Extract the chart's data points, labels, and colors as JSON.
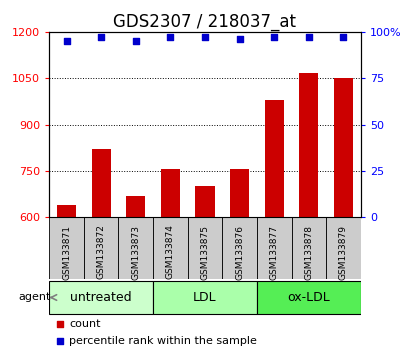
{
  "title": "GDS2307 / 218037_at",
  "categories": [
    "GSM133871",
    "GSM133872",
    "GSM133873",
    "GSM133874",
    "GSM133875",
    "GSM133876",
    "GSM133877",
    "GSM133878",
    "GSM133879"
  ],
  "bar_values": [
    638,
    820,
    668,
    757,
    700,
    757,
    978,
    1068,
    1052
  ],
  "percentile_values": [
    95,
    97,
    95,
    97,
    97,
    96,
    97,
    97,
    97
  ],
  "bar_color": "#cc0000",
  "percentile_color": "#0000cc",
  "ylim_left": [
    600,
    1200
  ],
  "ylim_right": [
    0,
    100
  ],
  "yticks_left": [
    600,
    750,
    900,
    1050,
    1200
  ],
  "yticks_right": [
    0,
    25,
    50,
    75,
    100
  ],
  "ytick_labels_left": [
    "600",
    "750",
    "900",
    "1050",
    "1200"
  ],
  "ytick_labels_right": [
    "0",
    "25",
    "50",
    "75",
    "100%"
  ],
  "groups": [
    {
      "label": "untreated",
      "start": 0,
      "end": 3,
      "color": "#ccffcc"
    },
    {
      "label": "LDL",
      "start": 3,
      "end": 6,
      "color": "#aaffaa"
    },
    {
      "label": "ox-LDL",
      "start": 6,
      "end": 9,
      "color": "#55ee55"
    }
  ],
  "agent_label": "agent",
  "legend_count_label": "count",
  "legend_percentile_label": "percentile rank within the sample",
  "background_color": "#ffffff",
  "plot_bg_color": "#ffffff",
  "sample_bg_color": "#cccccc",
  "grid_color": "#000000",
  "bar_width": 0.55,
  "title_fontsize": 12,
  "tick_fontsize": 8,
  "sample_fontsize": 6.5,
  "label_fontsize": 8,
  "group_label_fontsize": 9
}
